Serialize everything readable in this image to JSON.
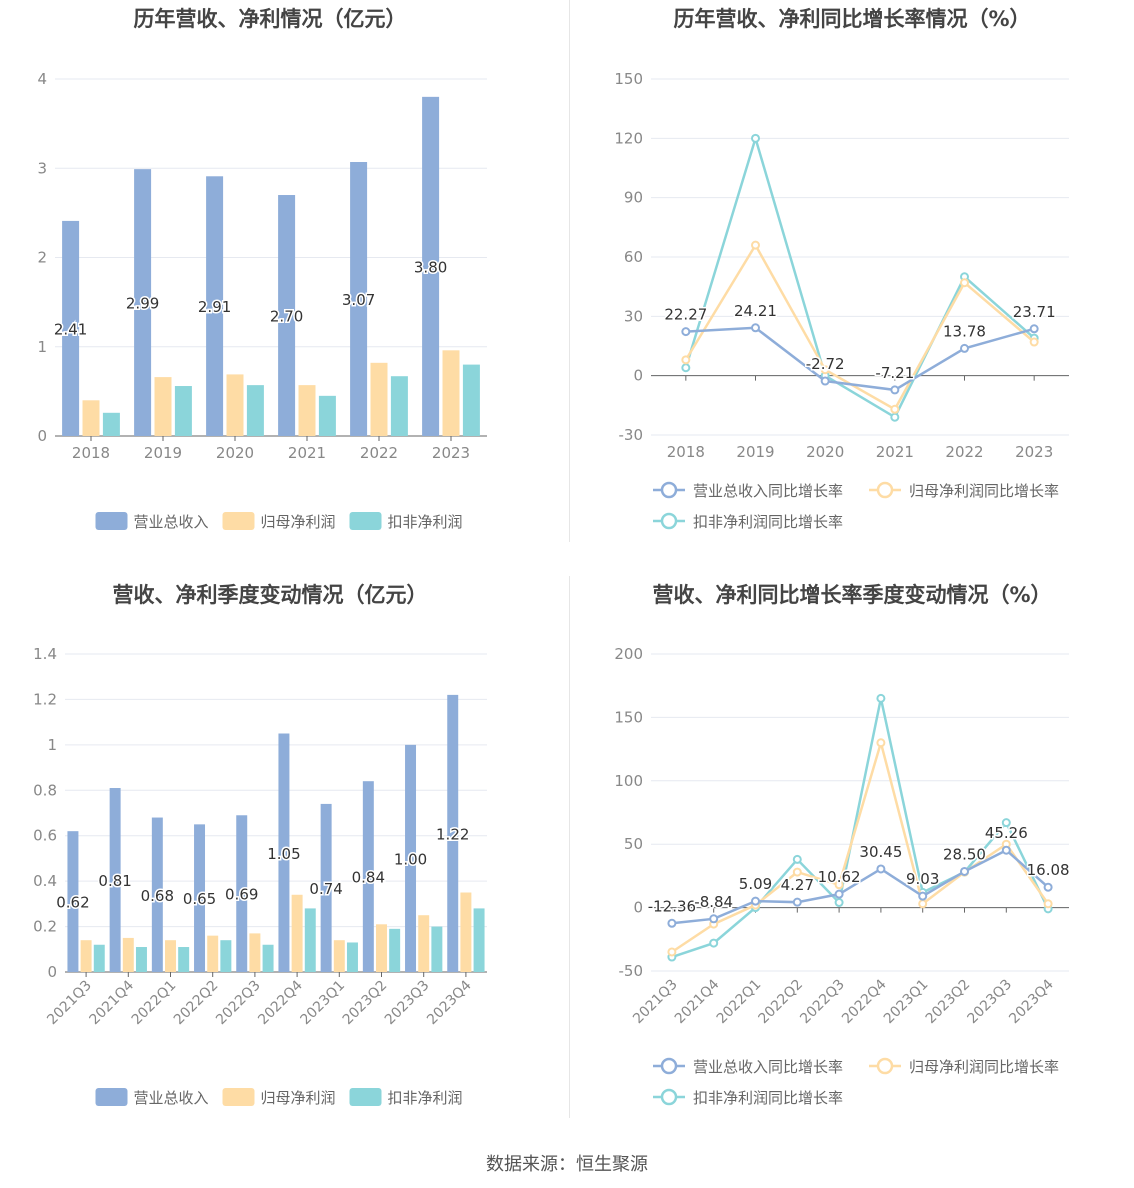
{
  "colors": {
    "revenue": "#8eadd9",
    "net_profit": "#fedca5",
    "deducted_profit": "#8bd5da",
    "grid": "#e6e9f0",
    "axis": "#666666",
    "tick_text": "#888888",
    "title": "#444444",
    "label": "#333333"
  },
  "source": "数据来源：恒生聚源",
  "chart_data": [
    {
      "type": "bar",
      "title": "历年营收、净利情况（亿元）",
      "categories": [
        "2018",
        "2019",
        "2020",
        "2021",
        "2022",
        "2023"
      ],
      "ylim": [
        0,
        4
      ],
      "yticks": [
        "0",
        "1",
        "2",
        "3",
        "4"
      ],
      "series": [
        {
          "name": "营业总收入",
          "values": [
            2.41,
            2.99,
            2.91,
            2.7,
            3.07,
            3.8
          ],
          "labels": [
            "2.41",
            "2.99",
            "2.91",
            "2.70",
            "3.07",
            "3.80"
          ]
        },
        {
          "name": "归母净利润",
          "values": [
            0.4,
            0.66,
            0.69,
            0.57,
            0.82,
            0.96
          ]
        },
        {
          "name": "扣非净利润",
          "values": [
            0.26,
            0.56,
            0.57,
            0.45,
            0.67,
            0.8
          ]
        }
      ],
      "legend": "bottom",
      "grid": true
    },
    {
      "type": "line",
      "title": "历年营收、净利同比增长率情况（%）",
      "categories": [
        "2018",
        "2019",
        "2020",
        "2021",
        "2022",
        "2023"
      ],
      "ylim": [
        -30,
        150
      ],
      "yticks": [
        "-30",
        "0",
        "30",
        "60",
        "90",
        "120",
        "150"
      ],
      "series": [
        {
          "name": "营业总收入同比增长率",
          "values": [
            22.27,
            24.21,
            -2.72,
            -7.21,
            13.78,
            23.71
          ],
          "labels": [
            "22.27",
            "24.21",
            "-2.72",
            "-7.21",
            "13.78",
            "23.71"
          ]
        },
        {
          "name": "归母净利润同比增长率",
          "values": [
            8,
            66,
            3,
            -17,
            47,
            17
          ]
        },
        {
          "name": "扣非净利润同比增长率",
          "values": [
            4,
            120,
            0,
            -21,
            50,
            19
          ]
        }
      ],
      "legend": "bottom",
      "grid": true
    },
    {
      "type": "bar",
      "title": "营收、净利季度变动情况（亿元）",
      "categories": [
        "2021Q3",
        "2021Q4",
        "2022Q1",
        "2022Q2",
        "2022Q3",
        "2022Q4",
        "2023Q1",
        "2023Q2",
        "2023Q3",
        "2023Q4"
      ],
      "ylim": [
        0,
        1.4
      ],
      "yticks": [
        "0",
        "0.2",
        "0.4",
        "0.6",
        "0.8",
        "1",
        "1.2",
        "1.4"
      ],
      "series": [
        {
          "name": "营业总收入",
          "values": [
            0.62,
            0.81,
            0.68,
            0.65,
            0.69,
            1.05,
            0.74,
            0.84,
            1.0,
            1.22
          ],
          "labels": [
            "0.62",
            "0.81",
            "0.68",
            "0.65",
            "0.69",
            "1.05",
            "0.74",
            "0.84",
            "1.00",
            "1.22"
          ]
        },
        {
          "name": "归母净利润",
          "values": [
            0.14,
            0.15,
            0.14,
            0.16,
            0.17,
            0.34,
            0.14,
            0.21,
            0.25,
            0.35
          ]
        },
        {
          "name": "扣非净利润",
          "values": [
            0.12,
            0.11,
            0.11,
            0.14,
            0.12,
            0.28,
            0.13,
            0.19,
            0.2,
            0.28
          ]
        }
      ],
      "legend": "bottom",
      "grid": true
    },
    {
      "type": "line",
      "title": "营收、净利同比增长率季度变动情况（%）",
      "categories": [
        "2021Q3",
        "2021Q4",
        "2022Q1",
        "2022Q2",
        "2022Q3",
        "2022Q4",
        "2023Q1",
        "2023Q2",
        "2023Q3",
        "2023Q4"
      ],
      "ylim": [
        -50,
        200
      ],
      "yticks": [
        "-50",
        "0",
        "50",
        "100",
        "150",
        "200"
      ],
      "series": [
        {
          "name": "营业总收入同比增长率",
          "values": [
            -12.36,
            -8.84,
            5.09,
            4.27,
            10.62,
            30.45,
            9.03,
            28.5,
            45.26,
            16.08
          ],
          "labels": [
            "-12.36",
            "-8.84",
            "5.09",
            "4.27",
            "10.62",
            "30.45",
            "9.03",
            "28.50",
            "45.26",
            "16.08"
          ]
        },
        {
          "name": "归母净利润同比增长率",
          "values": [
            -35,
            -13,
            2,
            28,
            18,
            130,
            3,
            28,
            50,
            3
          ]
        },
        {
          "name": "扣非净利润同比增长率",
          "values": [
            -39,
            -28,
            0,
            38,
            4,
            165,
            12,
            28,
            67,
            -1
          ]
        }
      ],
      "legend": "bottom",
      "grid": true
    }
  ]
}
